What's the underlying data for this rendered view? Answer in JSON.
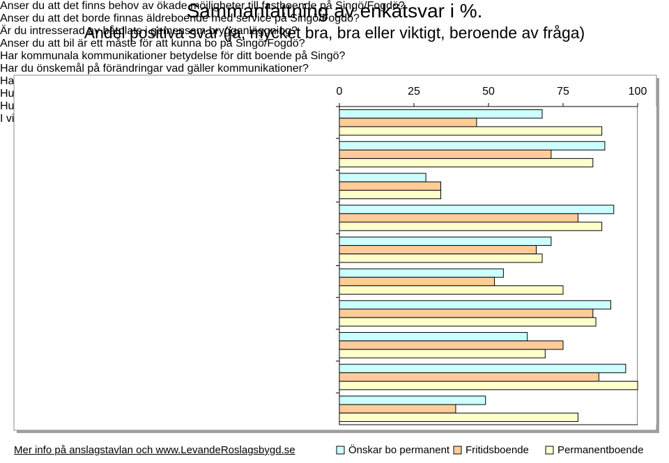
{
  "chart_data": {
    "type": "hbar",
    "title": "Sammanfattning av enkätsvar i %.",
    "subtitle": "Andel positiva svar (ja, mycket bra, bra eller viktigt, beroende av fråga)",
    "footer": "Mer info på anslagstavlan och www.LevandeRoslagsbygd.se",
    "categories": [
      "Anser du att det finns behov av ökade möjligheter till fastboende på Singö/Fogdö?",
      "Anser du att det borde finnas äldreboende med service på Singö/Fogdö?",
      "Är du intresserad av båtplats i gemensam brygganläggning?",
      "Anser du att bil är ett måste för att kunna bo på Singö/Fogdö?",
      "Har kommunala kommunikationer betydelse för ditt boende på Singö?",
      "Har du önskemål på förändringar vad gäller kommunikationer?",
      "Har du haft kontakt med Norrtälje kommun?",
      "Hur har kontakten med kommunen fungerat?",
      "Hur viktigt är det med skola på Singö?",
      "I vilken omfattning har skolans existens påverkat ditt beslut att kunna bosätta dig på Singö/Fogdö?"
    ],
    "series": [
      {
        "name": "Önskar bo permanent",
        "color": "#ccffff",
        "values": [
          68,
          89,
          29,
          92,
          71,
          55,
          91,
          63,
          96,
          49
        ]
      },
      {
        "name": "Fritidsboende",
        "color": "#ffcc99",
        "values": [
          46,
          71,
          34,
          80,
          66,
          52,
          85,
          75,
          87,
          39
        ]
      },
      {
        "name": "Permanentboende",
        "color": "#ffffcc",
        "values": [
          88,
          85,
          34,
          88,
          68,
          75,
          86,
          69,
          100,
          80
        ]
      }
    ],
    "xlim": [
      0,
      100
    ],
    "xticks": [
      0,
      25,
      50,
      75,
      100
    ]
  }
}
